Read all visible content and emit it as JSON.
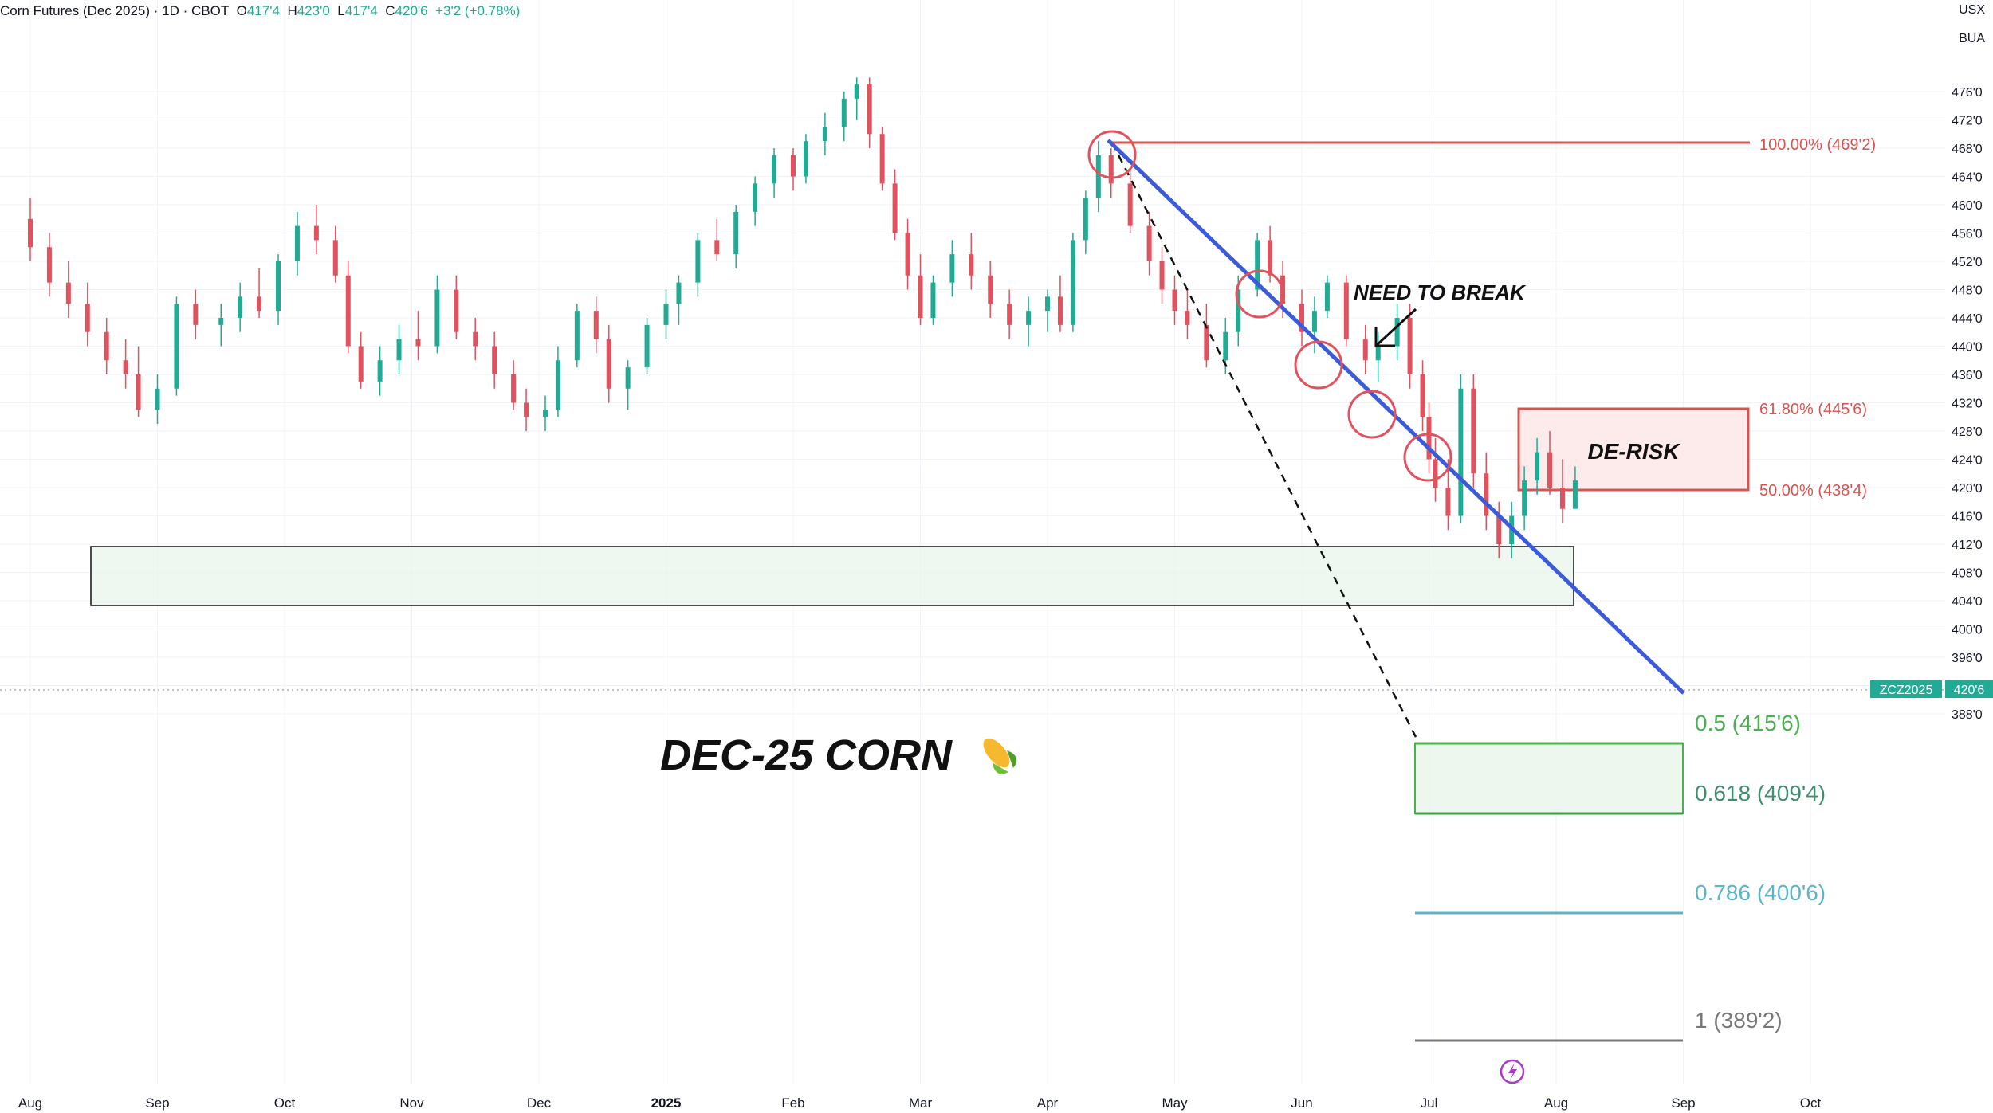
{
  "header": {
    "symbol": "Corn Futures (Dec 2025)",
    "interval": "1D",
    "exchange": "CBOT",
    "open_label": "O",
    "open": "417'4",
    "high_label": "H",
    "high": "423'0",
    "low_label": "L",
    "low": "417'4",
    "close_label": "C",
    "close": "420'6",
    "change": "+3'2 (+0.78%)"
  },
  "axis_units": {
    "currency": "USX",
    "unit": "BUA"
  },
  "price_label": {
    "ticker": "ZCZ2025",
    "value": "420'6"
  },
  "colors": {
    "up": "#22ab94",
    "down": "#e0525e",
    "trend": "#3b5bdb",
    "fib_red": "#d9534f",
    "fib_green": "#4caf50",
    "fib_teal": "#5fb3c7",
    "fib_gray": "#777777"
  },
  "annotations": {
    "title": "DEC-25 CORN",
    "title_icon": "corn-icon",
    "need_to_break": "NEED TO BREAK",
    "derisk": "DE-RISK",
    "fib_100": "100.00% (469'2)",
    "fib_618_top": "61.80% (445'6)",
    "fib_50_top": "50.00% (438'4)",
    "fib_05": "0.5 (415'6)",
    "fib_0618": "0.618 (409'4)",
    "fib_0786": "0.786 (400'6)",
    "fib_1": "1 (389'2)"
  },
  "chart_data": {
    "type": "candlestick",
    "y_ticks": [
      "476'0",
      "472'0",
      "468'0",
      "464'0",
      "460'0",
      "456'0",
      "452'0",
      "448'0",
      "444'0",
      "440'0",
      "436'0",
      "432'0",
      "428'0",
      "424'0",
      "420'0",
      "416'0",
      "412'0",
      "408'0",
      "404'0",
      "400'0",
      "396'0",
      "392'0",
      "388'0"
    ],
    "y_tick_values": [
      476,
      472,
      468,
      464,
      460,
      456,
      452,
      448,
      444,
      440,
      436,
      432,
      428,
      424,
      420,
      416,
      412,
      408,
      404,
      400,
      396,
      392,
      388
    ],
    "x_ticks": [
      "Aug",
      "Sep",
      "Oct",
      "Nov",
      "Dec",
      "2025",
      "Feb",
      "Mar",
      "Apr",
      "May",
      "Jun",
      "Jul",
      "Aug",
      "Sep",
      "Oct"
    ],
    "x_tick_positions": [
      0,
      1,
      2,
      3,
      4,
      5,
      6,
      7,
      8,
      9,
      10,
      11,
      12,
      13,
      14
    ],
    "ylim": [
      386,
      478
    ],
    "series": [
      {
        "values": [
          [
            0,
            458,
            461,
            452,
            454
          ],
          [
            0.15,
            454,
            456,
            447,
            449
          ],
          [
            0.3,
            449,
            452,
            444,
            446
          ],
          [
            0.45,
            446,
            449,
            440,
            442
          ],
          [
            0.6,
            442,
            444,
            436,
            438
          ],
          [
            0.75,
            438,
            441,
            434,
            436
          ],
          [
            0.85,
            436,
            440,
            430,
            431
          ],
          [
            1.0,
            431,
            436,
            429,
            434
          ],
          [
            1.15,
            434,
            447,
            433,
            446
          ],
          [
            1.3,
            446,
            448,
            441,
            443
          ],
          [
            1.5,
            443,
            446,
            440,
            444
          ],
          [
            1.65,
            444,
            449,
            442,
            447
          ],
          [
            1.8,
            447,
            451,
            444,
            445
          ],
          [
            1.95,
            445,
            453,
            443,
            452
          ],
          [
            2.1,
            452,
            459,
            450,
            457
          ],
          [
            2.25,
            457,
            460,
            453,
            455
          ],
          [
            2.4,
            455,
            457,
            449,
            450
          ],
          [
            2.5,
            450,
            452,
            439,
            440
          ],
          [
            2.6,
            440,
            442,
            434,
            435
          ],
          [
            2.75,
            435,
            440,
            433,
            438
          ],
          [
            2.9,
            438,
            443,
            436,
            441
          ],
          [
            3.05,
            441,
            445,
            438,
            440
          ],
          [
            3.2,
            440,
            450,
            439,
            448
          ],
          [
            3.35,
            448,
            450,
            441,
            442
          ],
          [
            3.5,
            442,
            444,
            438,
            440
          ],
          [
            3.65,
            440,
            442,
            434,
            436
          ],
          [
            3.8,
            436,
            438,
            431,
            432
          ],
          [
            3.9,
            432,
            434,
            428,
            430
          ],
          [
            4.05,
            430,
            433,
            428,
            431
          ],
          [
            4.15,
            431,
            440,
            430,
            438
          ],
          [
            4.3,
            438,
            446,
            437,
            445
          ],
          [
            4.45,
            445,
            447,
            439,
            441
          ],
          [
            4.55,
            441,
            443,
            432,
            434
          ],
          [
            4.7,
            434,
            438,
            431,
            437
          ],
          [
            4.85,
            437,
            444,
            436,
            443
          ],
          [
            5.0,
            443,
            448,
            441,
            446
          ],
          [
            5.1,
            446,
            450,
            443,
            449
          ],
          [
            5.25,
            449,
            456,
            447,
            455
          ],
          [
            5.4,
            455,
            458,
            452,
            453
          ],
          [
            5.55,
            453,
            460,
            451,
            459
          ],
          [
            5.7,
            459,
            464,
            457,
            463
          ],
          [
            5.85,
            463,
            468,
            461,
            467
          ],
          [
            6.0,
            467,
            468,
            462,
            464
          ],
          [
            6.1,
            464,
            470,
            463,
            469
          ],
          [
            6.25,
            469,
            473,
            467,
            471
          ],
          [
            6.4,
            471,
            476,
            469,
            475
          ],
          [
            6.5,
            475,
            478,
            472,
            477
          ],
          [
            6.6,
            477,
            478,
            468,
            470
          ],
          [
            6.7,
            470,
            471,
            462,
            463
          ],
          [
            6.8,
            463,
            465,
            455,
            456
          ],
          [
            6.9,
            456,
            458,
            448,
            450
          ],
          [
            7.0,
            450,
            453,
            443,
            444
          ],
          [
            7.1,
            444,
            450,
            443,
            449
          ],
          [
            7.25,
            449,
            455,
            447,
            453
          ],
          [
            7.4,
            453,
            456,
            448,
            450
          ],
          [
            7.55,
            450,
            452,
            444,
            446
          ],
          [
            7.7,
            446,
            448,
            441,
            443
          ],
          [
            7.85,
            443,
            447,
            440,
            445
          ],
          [
            8.0,
            445,
            448,
            442,
            447
          ],
          [
            8.1,
            447,
            450,
            442,
            443
          ],
          [
            8.2,
            443,
            456,
            442,
            455
          ],
          [
            8.3,
            455,
            462,
            453,
            461
          ],
          [
            8.4,
            461,
            469,
            459,
            467
          ],
          [
            8.5,
            467,
            468,
            461,
            463
          ],
          [
            8.65,
            463,
            465,
            456,
            457
          ],
          [
            8.8,
            457,
            459,
            450,
            452
          ],
          [
            8.9,
            452,
            454,
            446,
            448
          ],
          [
            9.0,
            448,
            450,
            443,
            445
          ],
          [
            9.1,
            445,
            448,
            441,
            443
          ],
          [
            9.25,
            443,
            446,
            437,
            438
          ],
          [
            9.4,
            438,
            444,
            436,
            442
          ],
          [
            9.5,
            442,
            450,
            440,
            448
          ],
          [
            9.65,
            448,
            456,
            447,
            455
          ],
          [
            9.75,
            455,
            457,
            449,
            450
          ],
          [
            9.85,
            450,
            452,
            444,
            446
          ],
          [
            10.0,
            446,
            448,
            440,
            442
          ],
          [
            10.1,
            442,
            447,
            439,
            445
          ],
          [
            10.2,
            445,
            450,
            444,
            449
          ],
          [
            10.35,
            449,
            450,
            440,
            441
          ],
          [
            10.5,
            441,
            443,
            436,
            438
          ],
          [
            10.6,
            438,
            442,
            435,
            440
          ],
          [
            10.75,
            440,
            446,
            438,
            444
          ],
          [
            10.85,
            444,
            446,
            434,
            436
          ],
          [
            10.95,
            436,
            438,
            428,
            430
          ],
          [
            11.0,
            430,
            432,
            422,
            424
          ],
          [
            11.05,
            424,
            427,
            418,
            420
          ],
          [
            11.15,
            420,
            424,
            414,
            416
          ],
          [
            11.25,
            416,
            436,
            415,
            434
          ],
          [
            11.35,
            434,
            436,
            420,
            422
          ],
          [
            11.45,
            422,
            425,
            414,
            416
          ],
          [
            11.55,
            416,
            418,
            410,
            412
          ],
          [
            11.65,
            412,
            418,
            410,
            416
          ],
          [
            11.75,
            416,
            423,
            414,
            421
          ],
          [
            11.85,
            421,
            427,
            419,
            425
          ],
          [
            11.95,
            425,
            428,
            419,
            420
          ],
          [
            12.05,
            420,
            424,
            415,
            417
          ],
          [
            12.15,
            417,
            423,
            417,
            421
          ]
        ]
      }
    ]
  }
}
